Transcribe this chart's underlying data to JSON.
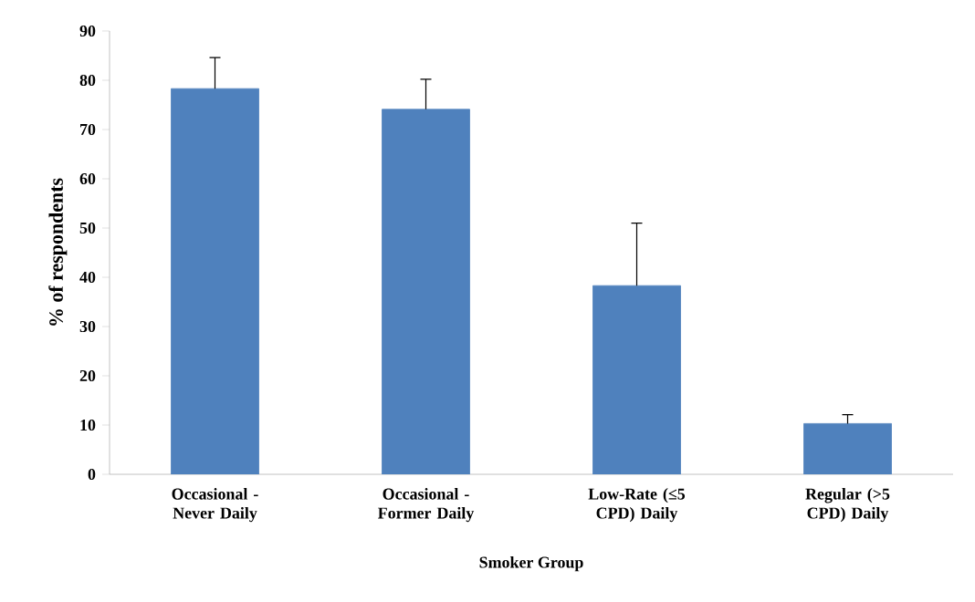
{
  "chart_data": {
    "type": "bar",
    "xlabel": "Smoker Group",
    "ylabel": "% of respondents",
    "categories": [
      "Occasional - Never Daily",
      "Occasional - Former Daily",
      "Low-Rate (≤5 CPD) Daily",
      "Regular (>5 CPD) Daily"
    ],
    "values": [
      78.3,
      74.1,
      38.3,
      10.3
    ],
    "errors": [
      [
        78.3,
        84.6
      ],
      [
        74.1,
        80.2
      ],
      [
        38.3,
        51
      ],
      [
        10.3,
        12.1
      ]
    ],
    "color": "#4f81bd",
    "ylim": [
      0,
      90
    ],
    "yticks": [
      0,
      10,
      20,
      30,
      40,
      50,
      60,
      70,
      80,
      90
    ],
    "grid": false
  }
}
